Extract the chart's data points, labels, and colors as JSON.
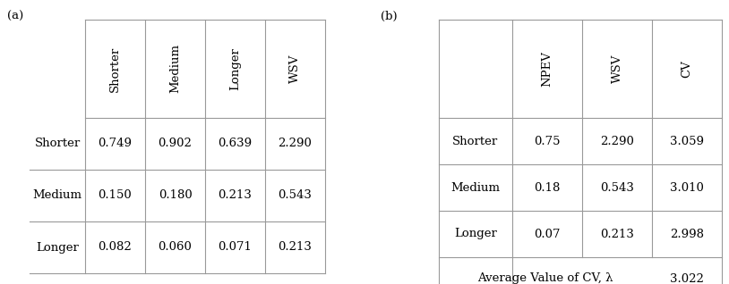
{
  "table_a": {
    "label": "(a)",
    "col_headers": [
      "Shorter",
      "Medium",
      "Longer",
      "WSV"
    ],
    "row_headers": [
      "Shorter",
      "Medium",
      "Longer"
    ],
    "data": [
      [
        "0.749",
        "0.902",
        "0.639",
        "2.290"
      ],
      [
        "0.150",
        "0.180",
        "0.213",
        "0.543"
      ],
      [
        "0.082",
        "0.060",
        "0.071",
        "0.213"
      ]
    ]
  },
  "table_b": {
    "label": "(b)",
    "col_headers": [
      "NPEV",
      "WSV",
      "CV"
    ],
    "row_headers": [
      "Shorter",
      "Medium",
      "Longer"
    ],
    "data": [
      [
        "0.75",
        "2.290",
        "3.059"
      ],
      [
        "0.18",
        "0.543",
        "3.010"
      ],
      [
        "0.07",
        "0.213",
        "2.998"
      ]
    ],
    "footer_label": "Average Value of CV, λ",
    "footer_value": "3.022"
  },
  "bg_color": "#ffffff",
  "line_color": "#999999",
  "text_color": "#000000",
  "font_size": 9.5,
  "header_font_size": 9.5
}
